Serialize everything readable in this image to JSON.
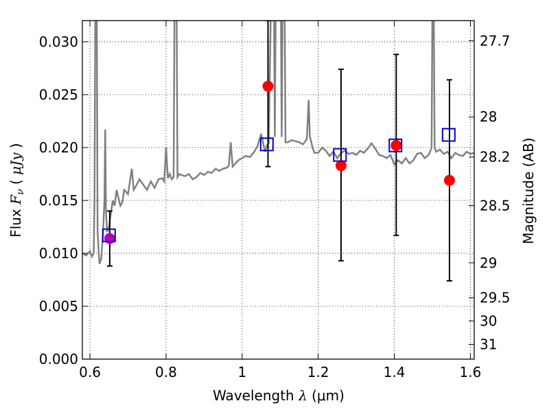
{
  "chart_data": {
    "type": "scatter",
    "title": "",
    "xlabel": "Wavelength",
    "xlabel_symbol": "λ",
    "xlabel_unit": "(μm)",
    "ylabel": "Flux",
    "ylabel_symbol": "F",
    "ylabel_subscript": "ν",
    "ylabel_unit": "μJy",
    "y2label": "Magnitude (AB)",
    "xlim": [
      0.58,
      1.61
    ],
    "ylim": [
      0.0,
      0.032
    ],
    "grid": true,
    "x_ticks": [
      {
        "value": 0.6,
        "label": "0.6"
      },
      {
        "value": 0.8,
        "label": "0.8"
      },
      {
        "value": 1.0,
        "label": "1"
      },
      {
        "value": 1.2,
        "label": "1.2"
      },
      {
        "value": 1.4,
        "label": "1.4"
      },
      {
        "value": 1.6,
        "label": "1.6"
      }
    ],
    "y_ticks": [
      {
        "value": 0.0,
        "label": "0.000"
      },
      {
        "value": 0.005,
        "label": "0.005"
      },
      {
        "value": 0.01,
        "label": "0.010"
      },
      {
        "value": 0.015,
        "label": "0.015"
      },
      {
        "value": 0.02,
        "label": "0.020"
      },
      {
        "value": 0.025,
        "label": "0.025"
      },
      {
        "value": 0.03,
        "label": "0.030"
      }
    ],
    "mag_ticks": [
      {
        "flux": 0.0301,
        "label": "27.7"
      },
      {
        "flux": 0.0229,
        "label": "28"
      },
      {
        "flux": 0.0191,
        "label": "28.2"
      },
      {
        "flux": 0.0145,
        "label": "28.5"
      },
      {
        "flux": 0.0091,
        "label": "29"
      },
      {
        "flux": 0.0058,
        "label": "29.5"
      },
      {
        "flux": 0.0036,
        "label": "30"
      },
      {
        "flux": 0.0014,
        "label": "31"
      }
    ],
    "series": [
      {
        "name": "template_spectrum",
        "kind": "line",
        "color": "#808080",
        "x": [
          0.58,
          0.59,
          0.6,
          0.605,
          0.61,
          0.612,
          0.614,
          0.616,
          0.618,
          0.62,
          0.625,
          0.63,
          0.635,
          0.638,
          0.64,
          0.642,
          0.645,
          0.65,
          0.655,
          0.66,
          0.665,
          0.67,
          0.675,
          0.68,
          0.685,
          0.69,
          0.7,
          0.71,
          0.715,
          0.72,
          0.73,
          0.74,
          0.75,
          0.76,
          0.77,
          0.78,
          0.79,
          0.795,
          0.8,
          0.805,
          0.81,
          0.815,
          0.82,
          0.822,
          0.824,
          0.826,
          0.828,
          0.83,
          0.835,
          0.84,
          0.85,
          0.86,
          0.87,
          0.88,
          0.89,
          0.9,
          0.91,
          0.92,
          0.93,
          0.94,
          0.95,
          0.96,
          0.965,
          0.97,
          0.975,
          0.98,
          0.99,
          1.0,
          1.01,
          1.02,
          1.03,
          1.04,
          1.05,
          1.06,
          1.065,
          1.07,
          1.075,
          1.08,
          1.082,
          1.084,
          1.086,
          1.088,
          1.09,
          1.095,
          1.1,
          1.102,
          1.104,
          1.106,
          1.108,
          1.11,
          1.112,
          1.114,
          1.12,
          1.13,
          1.14,
          1.15,
          1.16,
          1.17,
          1.175,
          1.178,
          1.18,
          1.185,
          1.19,
          1.2,
          1.21,
          1.22,
          1.23,
          1.24,
          1.25,
          1.26,
          1.27,
          1.28,
          1.29,
          1.3,
          1.31,
          1.32,
          1.33,
          1.34,
          1.35,
          1.36,
          1.37,
          1.38,
          1.39,
          1.4,
          1.41,
          1.42,
          1.43,
          1.44,
          1.45,
          1.46,
          1.47,
          1.48,
          1.49,
          1.495,
          1.498,
          1.5,
          1.502,
          1.504,
          1.506,
          1.51,
          1.52,
          1.53,
          1.54,
          1.55,
          1.56,
          1.57,
          1.58,
          1.59,
          1.6,
          1.61
        ],
        "y": [
          0.01,
          0.0098,
          0.0102,
          0.0097,
          0.01,
          0.015,
          0.032,
          0.032,
          0.032,
          0.012,
          0.009,
          0.0095,
          0.0125,
          0.015,
          0.0217,
          0.014,
          0.012,
          0.0125,
          0.0138,
          0.015,
          0.0145,
          0.016,
          0.0152,
          0.0145,
          0.0148,
          0.016,
          0.0156,
          0.018,
          0.016,
          0.0163,
          0.017,
          0.0165,
          0.016,
          0.0168,
          0.0162,
          0.017,
          0.0171,
          0.0168,
          0.02,
          0.0171,
          0.0175,
          0.017,
          0.0172,
          0.032,
          0.032,
          0.032,
          0.032,
          0.0172,
          0.0175,
          0.0174,
          0.0173,
          0.0175,
          0.017,
          0.0172,
          0.0176,
          0.0174,
          0.0177,
          0.0176,
          0.018,
          0.0178,
          0.018,
          0.0181,
          0.0183,
          0.0205,
          0.0182,
          0.0184,
          0.0188,
          0.019,
          0.0192,
          0.0191,
          0.0195,
          0.0201,
          0.0213,
          0.0196,
          0.0202,
          0.0204,
          0.032,
          0.032,
          0.032,
          0.032,
          0.021,
          0.032,
          0.032,
          0.032,
          0.032,
          0.032,
          0.021,
          0.032,
          0.032,
          0.032,
          0.032,
          0.0205,
          0.0205,
          0.0207,
          0.0206,
          0.0205,
          0.0203,
          0.0208,
          0.0245,
          0.021,
          0.0208,
          0.02,
          0.0195,
          0.0195,
          0.02,
          0.0197,
          0.0192,
          0.0196,
          0.019,
          0.0195,
          0.0197,
          0.0194,
          0.0195,
          0.0193,
          0.0197,
          0.0195,
          0.0199,
          0.0204,
          0.0199,
          0.0193,
          0.0192,
          0.019,
          0.0193,
          0.0184,
          0.0188,
          0.0185,
          0.019,
          0.0185,
          0.0188,
          0.0194,
          0.0195,
          0.019,
          0.0193,
          0.0197,
          0.02,
          0.032,
          0.032,
          0.032,
          0.02,
          0.0196,
          0.0198,
          0.0194,
          0.0196,
          0.019,
          0.0195,
          0.0193,
          0.0192,
          0.0196,
          0.0194,
          0.0195
        ]
      },
      {
        "name": "model_photometry",
        "kind": "open-square",
        "color": "#0000cc",
        "x": [
          0.65,
          1.065,
          1.257,
          1.403,
          1.543
        ],
        "y": [
          0.0117,
          0.0203,
          0.0193,
          0.0202,
          0.0212
        ]
      },
      {
        "name": "observed_photometry",
        "kind": "filled-circle",
        "color": "#ff0000",
        "x": [
          1.068,
          1.26,
          1.405,
          1.545
        ],
        "y": [
          0.0258,
          0.0183,
          0.0202,
          0.0169
        ],
        "yerr_low": [
          0.0182,
          0.0093,
          0.0117,
          0.0074
        ],
        "yerr_high": [
          0.032,
          0.0274,
          0.0288,
          0.0264
        ]
      },
      {
        "name": "observed_photometry_optical",
        "kind": "filled-circle",
        "color": "#bb00bb",
        "x": [
          0.652
        ],
        "y": [
          0.0114
        ],
        "yerr_low": [
          0.0088
        ],
        "yerr_high": [
          0.014
        ]
      }
    ]
  }
}
